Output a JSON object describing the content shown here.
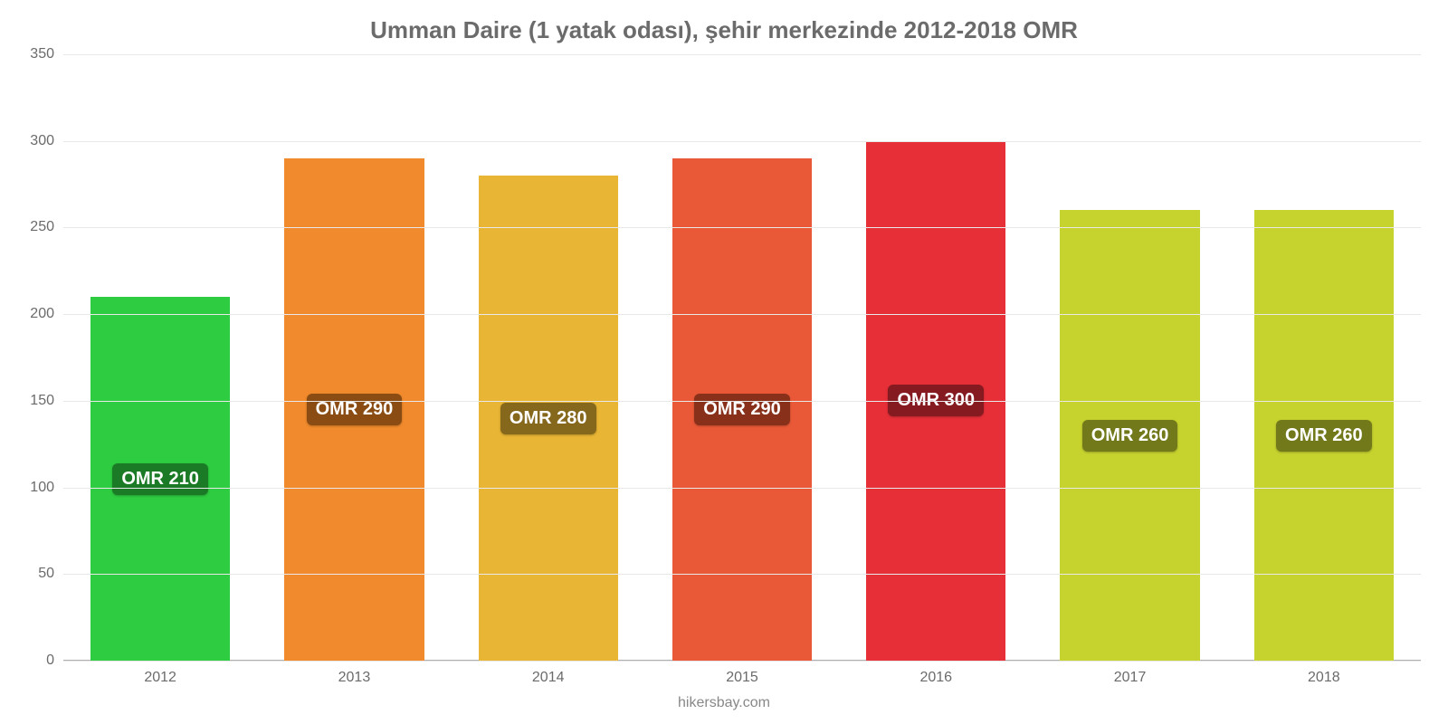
{
  "chart": {
    "type": "bar",
    "title": "Umman Daire (1 yatak odası), şehir merkezinde 2012-2018 OMR",
    "title_color": "#6b6b6b",
    "title_fontsize": 26,
    "source_text": "hikersbay.com",
    "source_color": "#888888",
    "source_fontsize": 16,
    "background_color": "#ffffff",
    "grid_color": "#e8e8e8",
    "baseline_color": "#b0b0b0",
    "ylim_min": 0,
    "ylim_max": 350,
    "ytick_step": 50,
    "yticks": [
      "0",
      "50",
      "100",
      "150",
      "200",
      "250",
      "300",
      "350"
    ],
    "ytick_color": "#6b6b6b",
    "ytick_fontsize": 16,
    "xtick_color": "#6b6b6b",
    "xtick_fontsize": 16,
    "bar_width_ratio": 0.72,
    "bar_label_fontsize": 20,
    "bar_label_text_color": "#ffffff",
    "bars": [
      {
        "category": "2012",
        "value": 210,
        "label": "OMR 210",
        "color": "#2ecc40",
        "label_bg": "#1b7a26"
      },
      {
        "category": "2013",
        "value": 290,
        "label": "OMR 290",
        "color": "#f08a2c",
        "label_bg": "#8a4c12"
      },
      {
        "category": "2014",
        "value": 280,
        "label": "OMR 280",
        "color": "#e8b534",
        "label_bg": "#86681d"
      },
      {
        "category": "2015",
        "value": 290,
        "label": "OMR 290",
        "color": "#ea5937",
        "label_bg": "#88301a"
      },
      {
        "category": "2016",
        "value": 300,
        "label": "OMR 300",
        "color": "#e72f38",
        "label_bg": "#851a20"
      },
      {
        "category": "2017",
        "value": 260,
        "label": "OMR 260",
        "color": "#c6d22e",
        "label_bg": "#71791b"
      },
      {
        "category": "2018",
        "value": 260,
        "label": "OMR 260",
        "color": "#c6d22e",
        "label_bg": "#71791b"
      }
    ]
  }
}
